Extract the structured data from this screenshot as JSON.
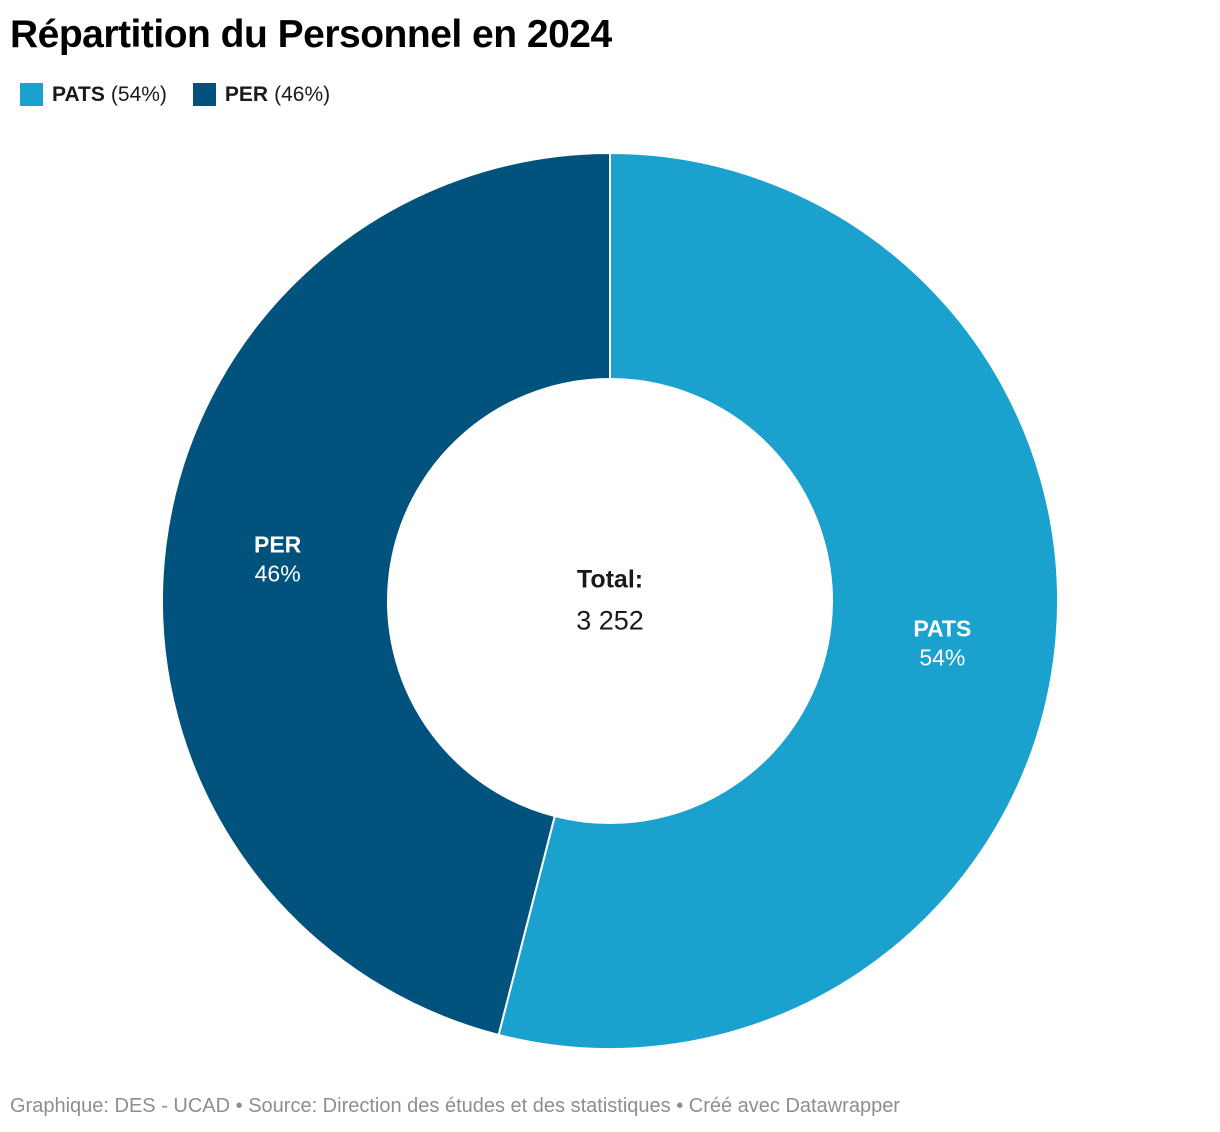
{
  "chart_data": {
    "type": "pie",
    "subtype": "donut",
    "title": "Répartition du Personnel en 2024",
    "total_label": "Total:",
    "total_value": "3 252",
    "start_angle_deg": 0,
    "direction": "clockwise",
    "inner_radius_ratio": 0.495,
    "legend_position": "top",
    "slices": [
      {
        "label": "PATS",
        "value_pct": 54,
        "pct_label": "54%",
        "legend_pct_label": "(54%)",
        "color": "#1aa1cd"
      },
      {
        "label": "PER",
        "value_pct": 46,
        "pct_label": "46%",
        "legend_pct_label": "(46%)",
        "color": "#01527c"
      }
    ],
    "divider_color": "#ffffff"
  },
  "footer": {
    "text": "Graphique: DES - UCAD • Source: Direction des études et des statistiques • Créé avec Datawrapper"
  }
}
